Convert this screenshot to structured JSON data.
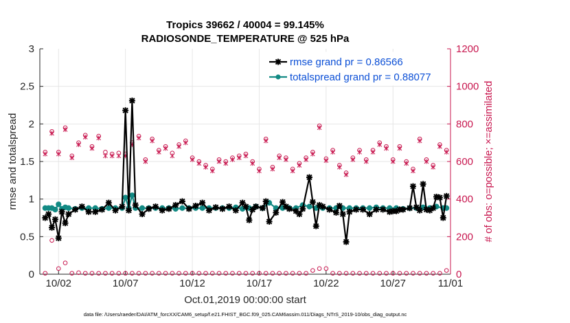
{
  "chart_data": {
    "type": "line",
    "title": "Tropics 39662 / 40004 = 99.145%",
    "subtitle": "RADIOSONDE_TEMPERATURE @ 525 hPa",
    "xlabel": "Oct.01,2019 00:00:00 start",
    "ylabel": "rmse and totalspread",
    "ylabel_right": "# of obs: o=possible; ×=assimilated",
    "footer": "data file: /Users/raeder/DAI/ATM_forcXX/CAM6_setup/f.e21.FHIST_BGC.f09_025.CAM6assim.011/Diags_NTrS_2019-10/obs_diag_output.nc",
    "xlim": [
      0.6,
      31.3
    ],
    "ylim": [
      0,
      3
    ],
    "ylim_right": [
      0,
      1200
    ],
    "yticks": [
      "0",
      "0.5",
      "1",
      "1.5",
      "2",
      "2.5",
      "3"
    ],
    "yticks_right": [
      "0",
      "200",
      "400",
      "600",
      "800",
      "1000",
      "1200"
    ],
    "xticks": [
      {
        "pos": 2,
        "label": "10/02"
      },
      {
        "pos": 7,
        "label": "10/07"
      },
      {
        "pos": 12,
        "label": "10/12"
      },
      {
        "pos": 17,
        "label": "10/17"
      },
      {
        "pos": 22,
        "label": "10/22"
      },
      {
        "pos": 27,
        "label": "10/27"
      },
      {
        "pos": 32,
        "label": "11/01"
      }
    ],
    "grid": true,
    "legend": {
      "location": "top-right"
    },
    "series": [
      {
        "name": "rmse grand pr = 0.86566",
        "color": "#000000",
        "x": [
          1.0,
          1.25,
          1.5,
          1.75,
          2.0,
          2.25,
          2.5,
          2.75,
          3.25,
          3.75,
          4.25,
          4.75,
          5.25,
          5.75,
          6.25,
          6.75,
          7.0,
          7.25,
          7.5,
          7.75,
          8.25,
          8.75,
          9.25,
          9.75,
          10.25,
          10.75,
          11.25,
          11.75,
          12.25,
          12.75,
          13.25,
          13.75,
          14.25,
          14.75,
          15.25,
          15.75,
          16.0,
          16.25,
          16.5,
          16.75,
          17.25,
          17.5,
          17.75,
          18.25,
          18.75,
          19.0,
          19.25,
          19.75,
          20.0,
          20.25,
          20.75,
          21.0,
          21.25,
          21.5,
          21.75,
          22.25,
          22.75,
          23.0,
          23.25,
          23.5,
          23.75,
          24.25,
          24.75,
          25.25,
          25.75,
          26.25,
          26.75,
          27.0,
          27.25,
          27.5,
          27.75,
          28.25,
          28.5,
          28.75,
          29.0,
          29.25,
          29.5,
          29.75,
          30.0,
          30.25,
          30.5,
          30.75,
          31.0
        ],
        "values": [
          0.75,
          0.8,
          0.62,
          0.73,
          0.48,
          0.83,
          0.68,
          0.8,
          0.86,
          0.9,
          0.83,
          0.83,
          0.86,
          0.95,
          0.85,
          0.9,
          2.18,
          0.85,
          2.31,
          0.92,
          0.8,
          0.87,
          0.9,
          0.85,
          0.87,
          0.92,
          0.97,
          0.87,
          0.91,
          0.95,
          0.85,
          0.89,
          0.87,
          0.9,
          0.85,
          0.95,
          0.9,
          0.72,
          0.86,
          0.9,
          0.88,
          0.97,
          0.7,
          0.82,
          0.96,
          0.9,
          0.87,
          0.84,
          0.8,
          0.87,
          1.29,
          0.96,
          0.64,
          0.92,
          0.9,
          0.86,
          0.82,
          0.91,
          0.8,
          0.43,
          0.83,
          0.86,
          0.86,
          0.8,
          0.86,
          0.86,
          0.83,
          0.84,
          0.84,
          0.86,
          0.86,
          0.88,
          1.17,
          0.89,
          0.85,
          1.2,
          0.86,
          0.85,
          0.88,
          1.03,
          1.02,
          0.75,
          1.04
        ]
      },
      {
        "name": "totalspread grand pr = 0.88077",
        "color": "#128a84",
        "x": [
          1.0,
          1.25,
          1.5,
          1.75,
          2.0,
          2.25,
          2.5,
          2.75,
          3.25,
          3.75,
          4.25,
          4.75,
          5.25,
          5.75,
          6.25,
          6.75,
          7.0,
          7.25,
          7.5,
          7.75,
          8.25,
          8.75,
          9.25,
          9.75,
          10.25,
          10.75,
          11.25,
          11.75,
          12.25,
          12.75,
          13.25,
          13.75,
          14.25,
          14.75,
          15.25,
          15.75,
          16.25,
          16.75,
          17.25,
          17.75,
          18.25,
          18.75,
          19.25,
          19.75,
          20.25,
          20.75,
          21.25,
          21.75,
          22.25,
          22.75,
          23.25,
          23.75,
          24.25,
          24.75,
          25.25,
          25.75,
          26.25,
          26.75,
          27.25,
          27.75,
          28.25,
          28.75,
          29.25,
          29.75,
          30.25,
          30.75,
          31.0
        ],
        "values": [
          0.88,
          0.88,
          0.88,
          0.86,
          0.93,
          0.87,
          0.89,
          0.88,
          0.87,
          0.88,
          0.88,
          0.88,
          0.87,
          0.88,
          0.88,
          0.88,
          1.02,
          0.88,
          1.05,
          0.88,
          0.88,
          0.88,
          0.88,
          0.88,
          0.88,
          0.87,
          0.88,
          0.88,
          0.88,
          0.88,
          0.88,
          0.88,
          0.88,
          0.88,
          0.89,
          0.87,
          0.88,
          0.9,
          0.88,
          0.95,
          0.88,
          0.88,
          0.88,
          0.88,
          0.92,
          0.9,
          0.88,
          0.88,
          0.88,
          0.88,
          0.88,
          0.88,
          0.88,
          0.88,
          0.88,
          0.89,
          0.88,
          0.88,
          0.88,
          0.87,
          0.88,
          0.88,
          0.89,
          0.88,
          0.9,
          0.88,
          0.88
        ]
      },
      {
        "name": "obs possible",
        "axis": "right",
        "color": "#c8174f",
        "marker": "o",
        "x": [
          1.0,
          1.5,
          2.0,
          2.5,
          3.0,
          3.5,
          4.0,
          4.5,
          5.0,
          5.5,
          6.0,
          6.5,
          7.0,
          7.5,
          8.0,
          8.5,
          9.0,
          9.5,
          10.0,
          10.5,
          11.0,
          11.5,
          12.0,
          12.5,
          13.0,
          13.5,
          14.0,
          14.5,
          15.0,
          15.5,
          16.0,
          16.5,
          17.0,
          17.5,
          18.0,
          18.5,
          19.0,
          19.5,
          20.0,
          20.5,
          21.0,
          21.5,
          22.0,
          22.5,
          23.0,
          23.5,
          24.0,
          24.5,
          25.0,
          25.5,
          26.0,
          26.5,
          27.0,
          27.5,
          28.0,
          28.5,
          29.0,
          29.5,
          30.0,
          30.5,
          31.0
        ],
        "values": [
          650,
          760,
          650,
          780,
          630,
          700,
          740,
          680,
          735,
          650,
          640,
          645,
          640,
          700,
          735,
          610,
          720,
          660,
          680,
          645,
          690,
          710,
          620,
          600,
          580,
          560,
          610,
          600,
          620,
          630,
          640,
          600,
          560,
          720,
          570,
          630,
          620,
          560,
          590,
          620,
          650,
          790,
          615,
          660,
          580,
          540,
          620,
          660,
          610,
          660,
          700,
          680,
          610,
          680,
          600,
          560,
          720,
          610,
          580,
          690,
          660
        ]
      },
      {
        "name": "obs assimilated",
        "axis": "right",
        "color": "#c8174f",
        "marker": "x",
        "x": [
          1.0,
          1.5,
          2.0,
          2.5,
          3.0,
          3.5,
          4.0,
          4.5,
          5.0,
          5.5,
          6.0,
          6.5,
          7.0,
          7.5,
          8.0,
          8.5,
          9.0,
          9.5,
          10.0,
          10.5,
          11.0,
          11.5,
          12.0,
          12.5,
          13.0,
          13.5,
          14.0,
          14.5,
          15.0,
          15.5,
          16.0,
          16.5,
          17.0,
          17.5,
          18.0,
          18.5,
          19.0,
          19.5,
          20.0,
          20.5,
          21.0,
          21.5,
          22.0,
          22.5,
          23.0,
          23.5,
          24.0,
          24.5,
          25.0,
          25.5,
          26.0,
          26.5,
          27.0,
          27.5,
          28.0,
          28.5,
          29.0,
          29.5,
          30.0,
          30.5,
          31.0
        ],
        "values": [
          640,
          750,
          640,
          770,
          620,
          690,
          730,
          670,
          725,
          630,
          630,
          630,
          630,
          690,
          725,
          600,
          710,
          650,
          670,
          630,
          680,
          700,
          610,
          590,
          570,
          550,
          600,
          590,
          610,
          620,
          630,
          590,
          550,
          710,
          560,
          620,
          610,
          550,
          580,
          610,
          640,
          780,
          605,
          650,
          570,
          530,
          610,
          650,
          600,
          650,
          690,
          670,
          600,
          670,
          590,
          550,
          710,
          600,
          570,
          680,
          650
        ]
      },
      {
        "name": "obs possible (low)",
        "axis": "right",
        "color": "#c8174f",
        "marker": "o",
        "x": [
          1.0,
          1.5,
          2.0,
          2.5,
          3.0,
          3.5,
          4.0,
          4.5,
          5.0,
          5.5,
          6.0,
          6.5,
          7.0,
          7.5,
          8.0,
          8.5,
          9.0,
          9.5,
          10.0,
          10.5,
          11.0,
          11.5,
          12.0,
          12.5,
          13.0,
          13.5,
          14.0,
          14.5,
          15.0,
          15.5,
          16.0,
          16.5,
          17.0,
          17.5,
          18.0,
          18.5,
          19.0,
          19.5,
          20.0,
          20.5,
          21.0,
          21.5,
          22.0,
          22.5,
          23.0,
          23.5,
          24.0,
          24.5,
          25.0,
          25.5,
          26.0,
          26.5,
          27.0,
          27.5,
          28.0,
          28.5,
          29.0,
          29.5,
          30.0,
          30.5,
          31.0
        ],
        "values": [
          5,
          180,
          30,
          60,
          5,
          8,
          5,
          5,
          5,
          5,
          5,
          5,
          5,
          5,
          5,
          5,
          5,
          5,
          5,
          5,
          5,
          5,
          5,
          5,
          5,
          5,
          5,
          5,
          5,
          5,
          5,
          5,
          5,
          5,
          5,
          5,
          5,
          5,
          5,
          5,
          20,
          30,
          30,
          5,
          5,
          5,
          5,
          5,
          5,
          5,
          5,
          5,
          5,
          5,
          5,
          5,
          5,
          5,
          5,
          5,
          20
        ]
      }
    ]
  }
}
